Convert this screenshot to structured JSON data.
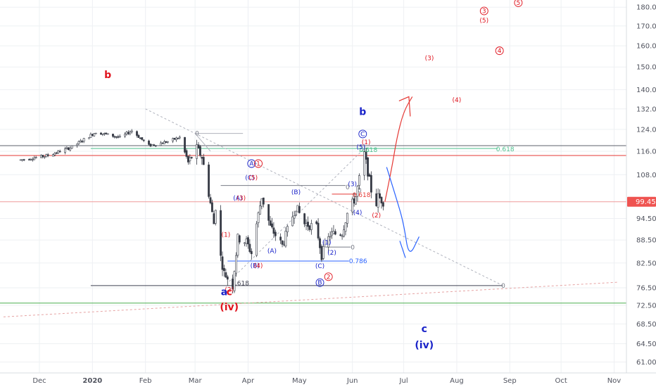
{
  "chart_data": {
    "type": "candlestick",
    "ylim": [
      59,
      184
    ],
    "y_scale": "log",
    "x_tick_labels": [
      "Dec",
      "2020",
      "Feb",
      "Mar",
      "Apr",
      "May",
      "Jun",
      "Jul",
      "Aug",
      "Sep",
      "Oct",
      "Nov"
    ],
    "y_tick_labels": [
      "180.00",
      "170.00",
      "160.00",
      "150.00",
      "140.00",
      "132.00",
      "124.00",
      "116.00",
      "108.00",
      "99.45",
      "94.50",
      "88.50",
      "82.50",
      "76.50",
      "72.50",
      "68.50",
      "64.50",
      "61.00"
    ],
    "last_price": "99.45",
    "colors": {
      "up": "#26a69a",
      "down": "#ef5350",
      "red_label": "#e0141e",
      "blue_label": "#1a23c9",
      "teal_line": "#4dbf8e",
      "green_line": "#4caf50",
      "grid": "#eef0f3",
      "axis_text": "#50535e"
    },
    "horizontal_levels": [
      {
        "value": 118,
        "color": "#5d606b",
        "role": "wave-b-top"
      },
      {
        "value": 117,
        "color": "#4dbf8e",
        "role": "fib-0.618"
      },
      {
        "value": 114.5,
        "color": "#e53935",
        "role": "red-resistance"
      },
      {
        "value": 99.45,
        "color": "#ef9a9a",
        "role": "last-price"
      },
      {
        "value": 77,
        "color": "#3f4251",
        "role": "fib-1.618"
      },
      {
        "value": 73,
        "color": "#4caf50",
        "role": "green-support"
      }
    ],
    "fib_labels": [
      {
        "text": "0",
        "x": "2020-03-01",
        "y": 122.5,
        "color": "#787b86"
      },
      {
        "text": "0.618",
        "x": "2020-06-05",
        "y": 116.5,
        "color": "#4dbf8e"
      },
      {
        "text": "0.618",
        "x": "2020-08-24",
        "y": 116.8,
        "color": "#4dbf8e"
      },
      {
        "text": "0",
        "x": "2020-05-28",
        "y": 104,
        "color": "#787b86"
      },
      {
        "text": "0",
        "x": "2020-06-04",
        "y": 103,
        "color": "#787b86"
      },
      {
        "text": "0.618",
        "x": "2020-06-01",
        "y": 101.5,
        "color": "#e53935"
      },
      {
        "text": "0",
        "x": "2020-05-31",
        "y": 86.5,
        "color": "#787b86"
      },
      {
        "text": "0.786",
        "x": "2020-05-30",
        "y": 83,
        "color": "#2962ff"
      },
      {
        "text": "1.618",
        "x": "2020-03-22",
        "y": 77.6,
        "color": "#3f4251"
      },
      {
        "text": "0",
        "x": "2020-08-27",
        "y": 77,
        "color": "#787b86"
      }
    ],
    "wave_labels": [
      {
        "text": "b",
        "x": "2020-01-10",
        "y": 145,
        "color": "#e0141e",
        "size": 14,
        "weight": "bold"
      },
      {
        "text": "b",
        "x": "2020-06-07",
        "y": 129.5,
        "color": "#1a23c9",
        "size": 14,
        "weight": "bold"
      },
      {
        "text": "C",
        "x": "2020-06-07",
        "y": 121.5,
        "color": "#1a23c9",
        "size": 9,
        "circle": true
      },
      {
        "text": "(1)",
        "x": "2020-06-09",
        "y": 118.5,
        "color": "#e0141e",
        "size": 9
      },
      {
        "text": "(5)",
        "x": "2020-06-06",
        "y": 116.8,
        "color": "#1a23c9",
        "size": 9
      },
      {
        "text": "A",
        "x": "2020-04-03",
        "y": 111,
        "color": "#1a23c9",
        "size": 9,
        "circle": true
      },
      {
        "text": "1",
        "x": "2020-04-07",
        "y": 111,
        "color": "#e0141e",
        "size": 9,
        "circle": true
      },
      {
        "text": "(C)",
        "x": "2020-04-02",
        "y": 106.3,
        "color": "#1a23c9",
        "size": 9
      },
      {
        "text": "(5)",
        "x": "2020-04-04",
        "y": 106.3,
        "color": "#e0141e",
        "size": 9
      },
      {
        "text": "(A)",
        "x": "2020-03-26",
        "y": 99.9,
        "color": "#1a23c9",
        "size": 9
      },
      {
        "text": "(3)",
        "x": "2020-03-28",
        "y": 99.9,
        "color": "#e0141e",
        "size": 9
      },
      {
        "text": "(B)",
        "x": "2020-04-29",
        "y": 101.8,
        "color": "#1a23c9",
        "size": 9
      },
      {
        "text": "(3)",
        "x": "2020-06-01",
        "y": 104.3,
        "color": "#1a23c9",
        "size": 9
      },
      {
        "text": "(4)",
        "x": "2020-06-04",
        "y": 95.6,
        "color": "#1a23c9",
        "size": 9
      },
      {
        "text": "(2)",
        "x": "2020-06-15",
        "y": 94.8,
        "color": "#e0141e",
        "size": 9
      },
      {
        "text": "(1)",
        "x": "2020-03-19",
        "y": 89.4,
        "color": "#e0141e",
        "size": 9
      },
      {
        "text": "(A)",
        "x": "2020-04-15",
        "y": 85.1,
        "color": "#1a23c9",
        "size": 9
      },
      {
        "text": "(1)",
        "x": "2020-05-17",
        "y": 87.3,
        "color": "#1a23c9",
        "size": 9
      },
      {
        "text": "(2)",
        "x": "2020-05-20",
        "y": 84.6,
        "color": "#1a23c9",
        "size": 9
      },
      {
        "text": "(B)",
        "x": "2020-04-05",
        "y": 81.3,
        "color": "#1a23c9",
        "size": 9
      },
      {
        "text": "(4)",
        "x": "2020-04-07",
        "y": 81.3,
        "color": "#e0141e",
        "size": 9
      },
      {
        "text": "(C)",
        "x": "2020-05-13",
        "y": 81.2,
        "color": "#1a23c9",
        "size": 9
      },
      {
        "text": "B",
        "x": "2020-05-13",
        "y": 77.2,
        "color": "#1a23c9",
        "size": 9,
        "circle": true
      },
      {
        "text": "2",
        "x": "2020-05-18",
        "y": 78.6,
        "color": "#e0141e",
        "size": 9,
        "circle": true
      },
      {
        "text": "(2)",
        "x": "2020-03-21",
        "y": 75.6,
        "color": "#e0141e",
        "size": 9
      },
      {
        "text": "a",
        "x": "2020-03-18",
        "y": 74.8,
        "color": "#1a23c9",
        "size": 14,
        "weight": "bold"
      },
      {
        "text": "c",
        "x": "2020-03-21",
        "y": 74.8,
        "color": "#e0141e",
        "size": 14,
        "weight": "bold"
      },
      {
        "text": "(iv)",
        "x": "2020-03-21",
        "y": 71.4,
        "color": "#e0141e",
        "size": 14,
        "weight": "bold"
      },
      {
        "text": "(3)",
        "x": "2020-07-16",
        "y": 153.2,
        "color": "#e0141e",
        "size": 9
      },
      {
        "text": "(4)",
        "x": "2020-08-01",
        "y": 134.8,
        "color": "#e0141e",
        "size": 9
      },
      {
        "text": "3",
        "x": "2020-08-17",
        "y": 176.8,
        "color": "#e0141e",
        "size": 9,
        "circle": true
      },
      {
        "text": "(5)",
        "x": "2020-08-17",
        "y": 171.8,
        "color": "#e0141e",
        "size": 9
      },
      {
        "text": "4",
        "x": "2020-08-26",
        "y": 156.6,
        "color": "#e0141e",
        "size": 9,
        "circle": true
      },
      {
        "text": "5",
        "x": "2020-09-06",
        "y": 181.3,
        "color": "#e0141e",
        "size": 9,
        "circle": true
      },
      {
        "text": "c",
        "x": "2020-07-13",
        "y": 66.8,
        "color": "#1a23c9",
        "size": 14,
        "weight": "bold"
      },
      {
        "text": "(iv)",
        "x": "2020-07-13",
        "y": 63.6,
        "color": "#1a23c9",
        "size": 14,
        "weight": "bold"
      }
    ],
    "projections": [
      {
        "direction": "up",
        "color": "#e53935",
        "path": [
          [
            "2020-06-20",
            99.5
          ],
          [
            "2020-06-24",
            110
          ],
          [
            "2020-06-27",
            121
          ],
          [
            "2020-07-01",
            131
          ],
          [
            "2020-07-06",
            137
          ]
        ]
      },
      {
        "direction": "down",
        "color": "#2962ff",
        "path": [
          [
            "2020-06-21",
            110.5
          ],
          [
            "2020-06-27",
            100
          ],
          [
            "2020-07-01",
            93
          ],
          [
            "2020-07-04",
            83.8
          ],
          [
            "2020-07-10",
            89.4
          ]
        ]
      }
    ],
    "trend_lines": [
      {
        "color": "#b0b3bd",
        "style": "dashed",
        "from": [
          "2020-02-01",
          132
        ],
        "to": [
          "2020-08-28",
          77
        ]
      },
      {
        "color": "#b0b3bd",
        "style": "dashed",
        "from": [
          "2020-03-21",
          78
        ],
        "to": [
          "2020-06-08",
          117
        ]
      },
      {
        "color": "#e6a3a3",
        "style": "dashed",
        "from": [
          "2019-11-10",
          70
        ],
        "to": [
          "2020-11-03",
          77.8
        ]
      }
    ]
  }
}
